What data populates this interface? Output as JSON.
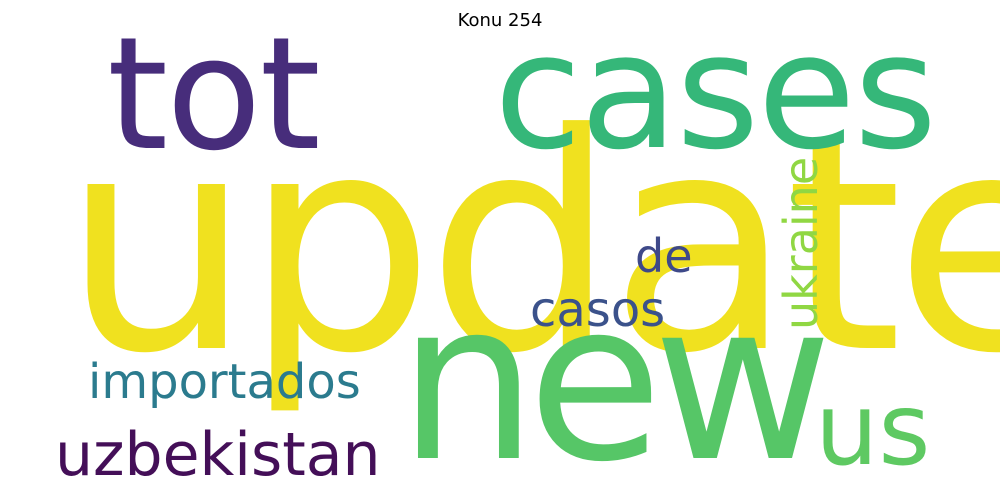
{
  "title": "Konu 254",
  "words": [
    {
      "key": "update",
      "text": "update",
      "color": "#f0e11f"
    },
    {
      "key": "new",
      "text": "new",
      "color": "#56c667"
    },
    {
      "key": "cases",
      "text": "cases",
      "color": "#35b779"
    },
    {
      "key": "tot",
      "text": "tot",
      "color": "#472d7b"
    },
    {
      "key": "us",
      "text": "us",
      "color": "#5ec962"
    },
    {
      "key": "uzbekistan",
      "text": "uzbekistan",
      "color": "#440f58"
    },
    {
      "key": "importados",
      "text": "importados",
      "color": "#2b7b8e"
    },
    {
      "key": "casos",
      "text": "casos",
      "color": "#3b528b"
    },
    {
      "key": "de",
      "text": "de",
      "color": "#3e4989"
    },
    {
      "key": "ukraine",
      "text": "ukraine",
      "color": "#90d743"
    }
  ]
}
